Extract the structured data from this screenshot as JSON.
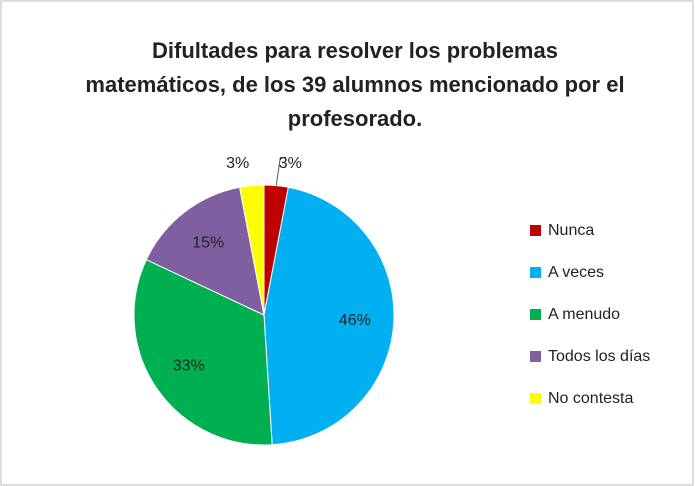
{
  "chart_data": {
    "type": "pie",
    "title": "Difultades para resolver los problemas matemáticos, de los 39 alumnos mencionado por el profesorado.",
    "categories": [
      "Nunca",
      "A veces",
      "A menudo",
      "Todos los días",
      "No contesta"
    ],
    "values": [
      3,
      46,
      33,
      15,
      3
    ],
    "value_labels": [
      "3%",
      "46%",
      "33%",
      "15%",
      "3%"
    ],
    "colors": [
      "#c00000",
      "#00b0f0",
      "#00b050",
      "#7f5fa0",
      "#ffff00"
    ],
    "legend": "right"
  }
}
